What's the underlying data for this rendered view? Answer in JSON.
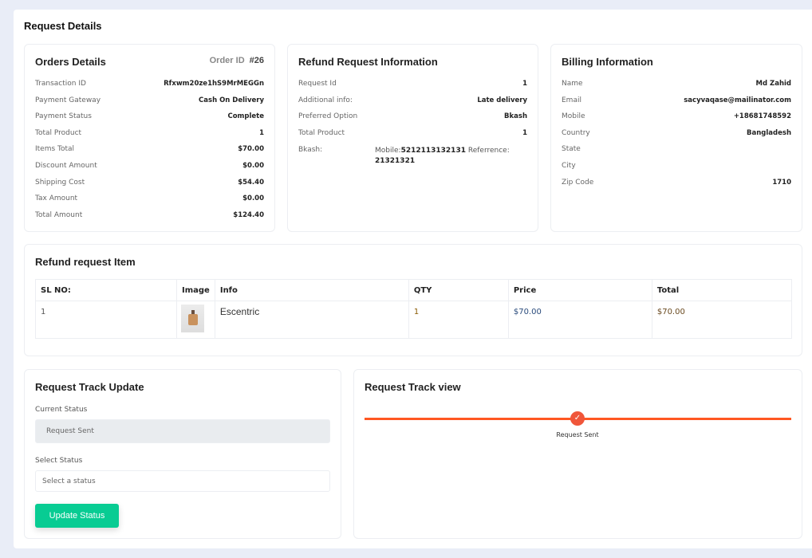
{
  "page_title": "Request Details",
  "orders": {
    "title": "Orders Details",
    "order_id_label": "Order ID",
    "order_id": "#26",
    "rows": [
      [
        "Transaction ID",
        "Rfxwm20ze1hS9MrMEGGn"
      ],
      [
        "Payment Gateway",
        "Cash On Delivery"
      ],
      [
        "Payment Status",
        "Complete"
      ],
      [
        "Total Product",
        "1"
      ],
      [
        "Items Total",
        "$70.00"
      ],
      [
        "Discount Amount",
        "$0.00"
      ],
      [
        "Shipping Cost",
        "$54.40"
      ],
      [
        "Tax Amount",
        "$0.00"
      ],
      [
        "Total Amount",
        "$124.40"
      ]
    ]
  },
  "refund": {
    "title": "Refund Request Information",
    "rows": [
      [
        "Request Id",
        "1"
      ],
      [
        "Additional info:",
        "Late delivery"
      ],
      [
        "Preferred Option",
        "Bkash"
      ],
      [
        "Total Product",
        "1"
      ]
    ],
    "bkash_label": "Bkash:",
    "mobile_label": "Mobile:",
    "mobile": "5212113132131",
    "reference_label": "Referrence:",
    "reference": "21321321"
  },
  "billing": {
    "title": "Billing Information",
    "rows": [
      [
        "Name",
        "Md Zahid"
      ],
      [
        "Email",
        "sacyvaqase@mailinator.com"
      ],
      [
        "Mobile",
        "+18681748592"
      ],
      [
        "Country",
        "Bangladesh"
      ],
      [
        "State",
        ""
      ],
      [
        "City",
        ""
      ],
      [
        "Zip Code",
        "1710"
      ]
    ]
  },
  "items": {
    "title": "Refund request Item",
    "headers": [
      "SL NO:",
      "Image",
      "Info",
      "QTY",
      "Price",
      "Total"
    ],
    "rows": [
      {
        "sl": "1",
        "info": "Escentric",
        "qty": "1",
        "price": "$70.00",
        "total": "$70.00"
      }
    ]
  },
  "track_update": {
    "title": "Request Track Update",
    "current_label": "Current Status",
    "current_value": "Request Sent",
    "select_label": "Select Status",
    "select_placeholder": "Select a status",
    "button": "Update Status"
  },
  "track_view": {
    "title": "Request Track view",
    "step": "Request Sent",
    "accent": "#ff5722"
  }
}
